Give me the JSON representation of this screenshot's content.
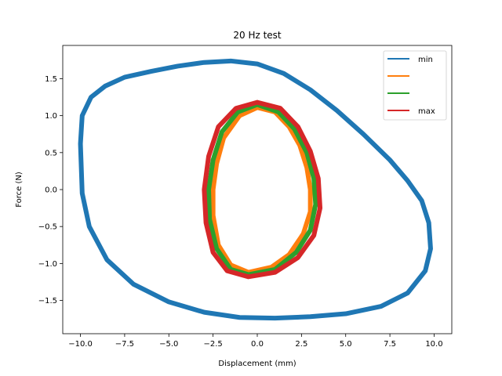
{
  "chart_data": {
    "type": "line",
    "title": "20 Hz test",
    "xlabel": "Displacement (mm)",
    "ylabel": "Force (N)",
    "xlim": [
      -11.0,
      11.0
    ],
    "ylim": [
      -1.95,
      1.95
    ],
    "xticks": [
      -10.0,
      -7.5,
      -5.0,
      -2.5,
      0.0,
      2.5,
      5.0,
      7.5,
      10.0
    ],
    "xtick_labels": [
      "−10.0",
      "−7.5",
      "−5.0",
      "−2.5",
      "0.0",
      "2.5",
      "5.0",
      "7.5",
      "10.0"
    ],
    "yticks": [
      -1.5,
      -1.0,
      -0.5,
      0.0,
      0.5,
      1.0,
      1.5
    ],
    "ytick_labels": [
      "−1.5",
      "−1.0",
      "−0.5",
      "0.0",
      "0.5",
      "1.0",
      "1.5"
    ],
    "grid": false,
    "legend_position": "top-right",
    "series": [
      {
        "name": "min",
        "color": "#1f77b4",
        "points": [
          [
            -10.0,
            0.62
          ],
          [
            -9.9,
            1.0
          ],
          [
            -9.4,
            1.25
          ],
          [
            -8.6,
            1.4
          ],
          [
            -7.5,
            1.52
          ],
          [
            -6.0,
            1.6
          ],
          [
            -4.5,
            1.67
          ],
          [
            -3.0,
            1.72
          ],
          [
            -1.5,
            1.74
          ],
          [
            0.0,
            1.7
          ],
          [
            1.5,
            1.57
          ],
          [
            3.0,
            1.35
          ],
          [
            4.5,
            1.07
          ],
          [
            6.0,
            0.75
          ],
          [
            7.5,
            0.4
          ],
          [
            8.5,
            0.12
          ],
          [
            9.3,
            -0.15
          ],
          [
            9.7,
            -0.45
          ],
          [
            9.8,
            -0.8
          ],
          [
            9.5,
            -1.1
          ],
          [
            8.5,
            -1.4
          ],
          [
            7.0,
            -1.58
          ],
          [
            5.0,
            -1.68
          ],
          [
            3.0,
            -1.72
          ],
          [
            1.0,
            -1.74
          ],
          [
            -1.0,
            -1.73
          ],
          [
            -3.0,
            -1.66
          ],
          [
            -5.0,
            -1.52
          ],
          [
            -7.0,
            -1.28
          ],
          [
            -8.5,
            -0.95
          ],
          [
            -9.5,
            -0.5
          ],
          [
            -9.9,
            -0.05
          ],
          [
            -10.0,
            0.62
          ]
        ]
      },
      {
        "name": "",
        "color": "#ff7f0e",
        "points": [
          [
            0.0,
            1.11
          ],
          [
            1.0,
            1.05
          ],
          [
            1.8,
            0.85
          ],
          [
            2.4,
            0.6
          ],
          [
            2.8,
            0.3
          ],
          [
            3.0,
            0.0
          ],
          [
            3.0,
            -0.3
          ],
          [
            2.6,
            -0.6
          ],
          [
            1.8,
            -0.88
          ],
          [
            0.8,
            -1.05
          ],
          [
            -0.5,
            -1.12
          ],
          [
            -1.5,
            -1.02
          ],
          [
            -2.2,
            -0.75
          ],
          [
            -2.5,
            -0.35
          ],
          [
            -2.5,
            0.0
          ],
          [
            -2.3,
            0.35
          ],
          [
            -1.9,
            0.7
          ],
          [
            -1.0,
            1.0
          ],
          [
            0.0,
            1.11
          ]
        ]
      },
      {
        "name": "",
        "color": "#2ca02c",
        "points": [
          [
            0.0,
            1.15
          ],
          [
            1.2,
            1.05
          ],
          [
            2.1,
            0.82
          ],
          [
            2.8,
            0.5
          ],
          [
            3.2,
            0.15
          ],
          [
            3.3,
            -0.2
          ],
          [
            3.0,
            -0.55
          ],
          [
            2.2,
            -0.85
          ],
          [
            1.0,
            -1.08
          ],
          [
            -0.5,
            -1.15
          ],
          [
            -1.5,
            -1.08
          ],
          [
            -2.3,
            -0.8
          ],
          [
            -2.7,
            -0.4
          ],
          [
            -2.75,
            0.0
          ],
          [
            -2.5,
            0.4
          ],
          [
            -2.0,
            0.78
          ],
          [
            -1.1,
            1.05
          ],
          [
            0.0,
            1.15
          ]
        ]
      },
      {
        "name": "max",
        "color": "#d62728",
        "points": [
          [
            0.0,
            1.18
          ],
          [
            1.3,
            1.1
          ],
          [
            2.3,
            0.85
          ],
          [
            3.0,
            0.52
          ],
          [
            3.45,
            0.15
          ],
          [
            3.55,
            -0.25
          ],
          [
            3.2,
            -0.62
          ],
          [
            2.3,
            -0.92
          ],
          [
            1.0,
            -1.12
          ],
          [
            -0.5,
            -1.18
          ],
          [
            -1.7,
            -1.1
          ],
          [
            -2.5,
            -0.85
          ],
          [
            -2.9,
            -0.45
          ],
          [
            -3.0,
            0.0
          ],
          [
            -2.75,
            0.45
          ],
          [
            -2.2,
            0.85
          ],
          [
            -1.2,
            1.1
          ],
          [
            0.0,
            1.18
          ]
        ]
      }
    ]
  }
}
